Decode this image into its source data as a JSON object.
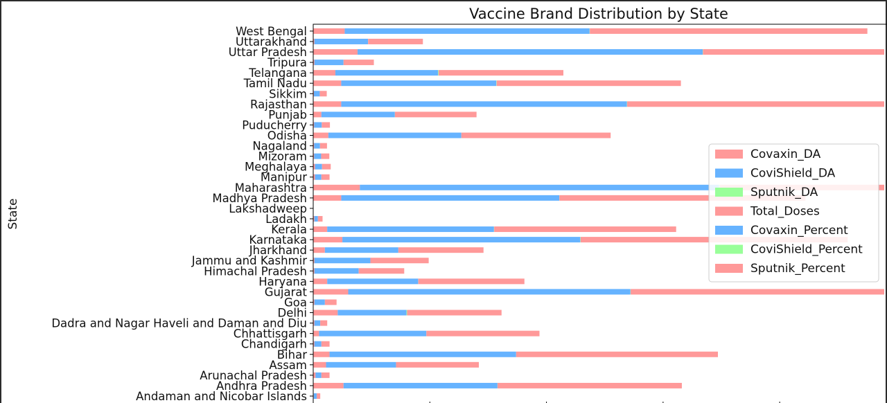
{
  "chart_data": {
    "type": "bar",
    "orientation": "horizontal",
    "stacked": true,
    "title": "Vaccine Brand Distribution by State",
    "ylabel": "State",
    "xlabel": "",
    "xlim": [
      0,
      70000000
    ],
    "grid": false,
    "legend_position": "right",
    "categories": [
      "Andaman and Nicobar Islands",
      "Andhra Pradesh",
      "Arunachal Pradesh",
      "Assam",
      "Bihar",
      "Chandigarh",
      "Chhattisgarh",
      "Dadra and Nagar Haveli and Daman and Diu",
      "Delhi",
      "Goa",
      "Gujarat",
      "Haryana",
      "Himachal Pradesh",
      "Jammu and Kashmir",
      "Jharkhand",
      "Karnataka",
      "Kerala",
      "Ladakh",
      "Lakshadweep",
      "Madhya Pradesh",
      "Maharashtra",
      "Manipur",
      "Meghalaya",
      "Mizoram",
      "Nagaland",
      "Odisha",
      "Puducherry",
      "Punjab",
      "Rajasthan",
      "Sikkim",
      "Tamil Nadu",
      "Telangana",
      "Tripura",
      "Uttar Pradesh",
      "Uttarakhand",
      "West Bengal"
    ],
    "series": [
      {
        "name": "Covaxin_DA",
        "color": "#ff9999",
        "values": [
          50000,
          2600000,
          200000,
          1100000,
          1400000,
          100000,
          500000,
          100000,
          2100000,
          100000,
          3000000,
          1200000,
          100000,
          100000,
          1000000,
          2500000,
          1200000,
          100000,
          5000,
          2400000,
          4000000,
          150000,
          150000,
          80000,
          80000,
          1300000,
          80000,
          700000,
          2400000,
          60000,
          2400000,
          1900000,
          100000,
          3800000,
          100000,
          2700000
        ]
      },
      {
        "name": "CoviShield_DA",
        "color": "#66b3ff",
        "values": [
          250000,
          13200000,
          500000,
          6000000,
          16000000,
          600000,
          9200000,
          500000,
          5900000,
          900000,
          24200000,
          7800000,
          3800000,
          4800000,
          6300000,
          20400000,
          14300000,
          300000,
          5000,
          18700000,
          30800000,
          550000,
          600000,
          600000,
          500000,
          11400000,
          650000,
          6300000,
          24500000,
          500000,
          13300000,
          8800000,
          2500000,
          29600000,
          4600000,
          21000000
        ]
      },
      {
        "name": "Sputnik_DA",
        "color": "#99ff99",
        "values": [
          2000,
          10000,
          1000,
          2000,
          3000,
          2000,
          2000,
          1000,
          50000,
          2000,
          20000,
          10000,
          2000,
          2000,
          2000,
          30000,
          20000,
          1000,
          0,
          10000,
          80000,
          1000,
          1000,
          1000,
          1000,
          5000,
          2000,
          5000,
          20000,
          1000,
          30000,
          50000,
          1000,
          20000,
          5000,
          20000
        ]
      },
      {
        "name": "Total_Doses",
        "color": "#ff9999",
        "values": [
          300000,
          15800000,
          700000,
          7100000,
          17300000,
          700000,
          9700000,
          600000,
          8100000,
          1000000,
          27300000,
          9100000,
          3900000,
          5000000,
          7300000,
          22900000,
          15600000,
          400000,
          10000,
          21100000,
          34900000,
          700000,
          750000,
          700000,
          600000,
          12800000,
          700000,
          7000000,
          26900000,
          600000,
          15800000,
          10700000,
          2600000,
          33400000,
          4700000,
          23800000
        ]
      },
      {
        "name": "Covaxin_Percent",
        "color": "#66b3ff",
        "values": [
          17,
          16,
          29,
          15,
          8,
          14,
          5,
          17,
          26,
          10,
          11,
          13,
          3,
          2,
          14,
          11,
          8,
          25,
          50,
          11,
          11,
          21,
          20,
          12,
          14,
          10,
          11,
          10,
          9,
          10,
          15,
          18,
          4,
          11,
          2,
          11
        ]
      },
      {
        "name": "CoviShield_Percent",
        "color": "#99ff99",
        "values": [
          83,
          84,
          71,
          85,
          92,
          86,
          95,
          83,
          73,
          90,
          89,
          86,
          97,
          98,
          86,
          89,
          92,
          75,
          50,
          89,
          88,
          79,
          80,
          88,
          86,
          90,
          89,
          90,
          91,
          90,
          85,
          82,
          96,
          89,
          98,
          89
        ]
      },
      {
        "name": "Sputnik_Percent",
        "color": "#ff9999",
        "values": [
          1,
          0,
          0,
          0,
          0,
          0,
          0,
          0,
          1,
          0,
          0,
          0,
          0,
          0,
          0,
          0,
          0,
          0,
          0,
          0,
          0,
          0,
          0,
          0,
          0,
          0,
          0,
          0,
          0,
          0,
          0,
          0,
          0,
          0,
          0,
          0
        ]
      }
    ]
  }
}
